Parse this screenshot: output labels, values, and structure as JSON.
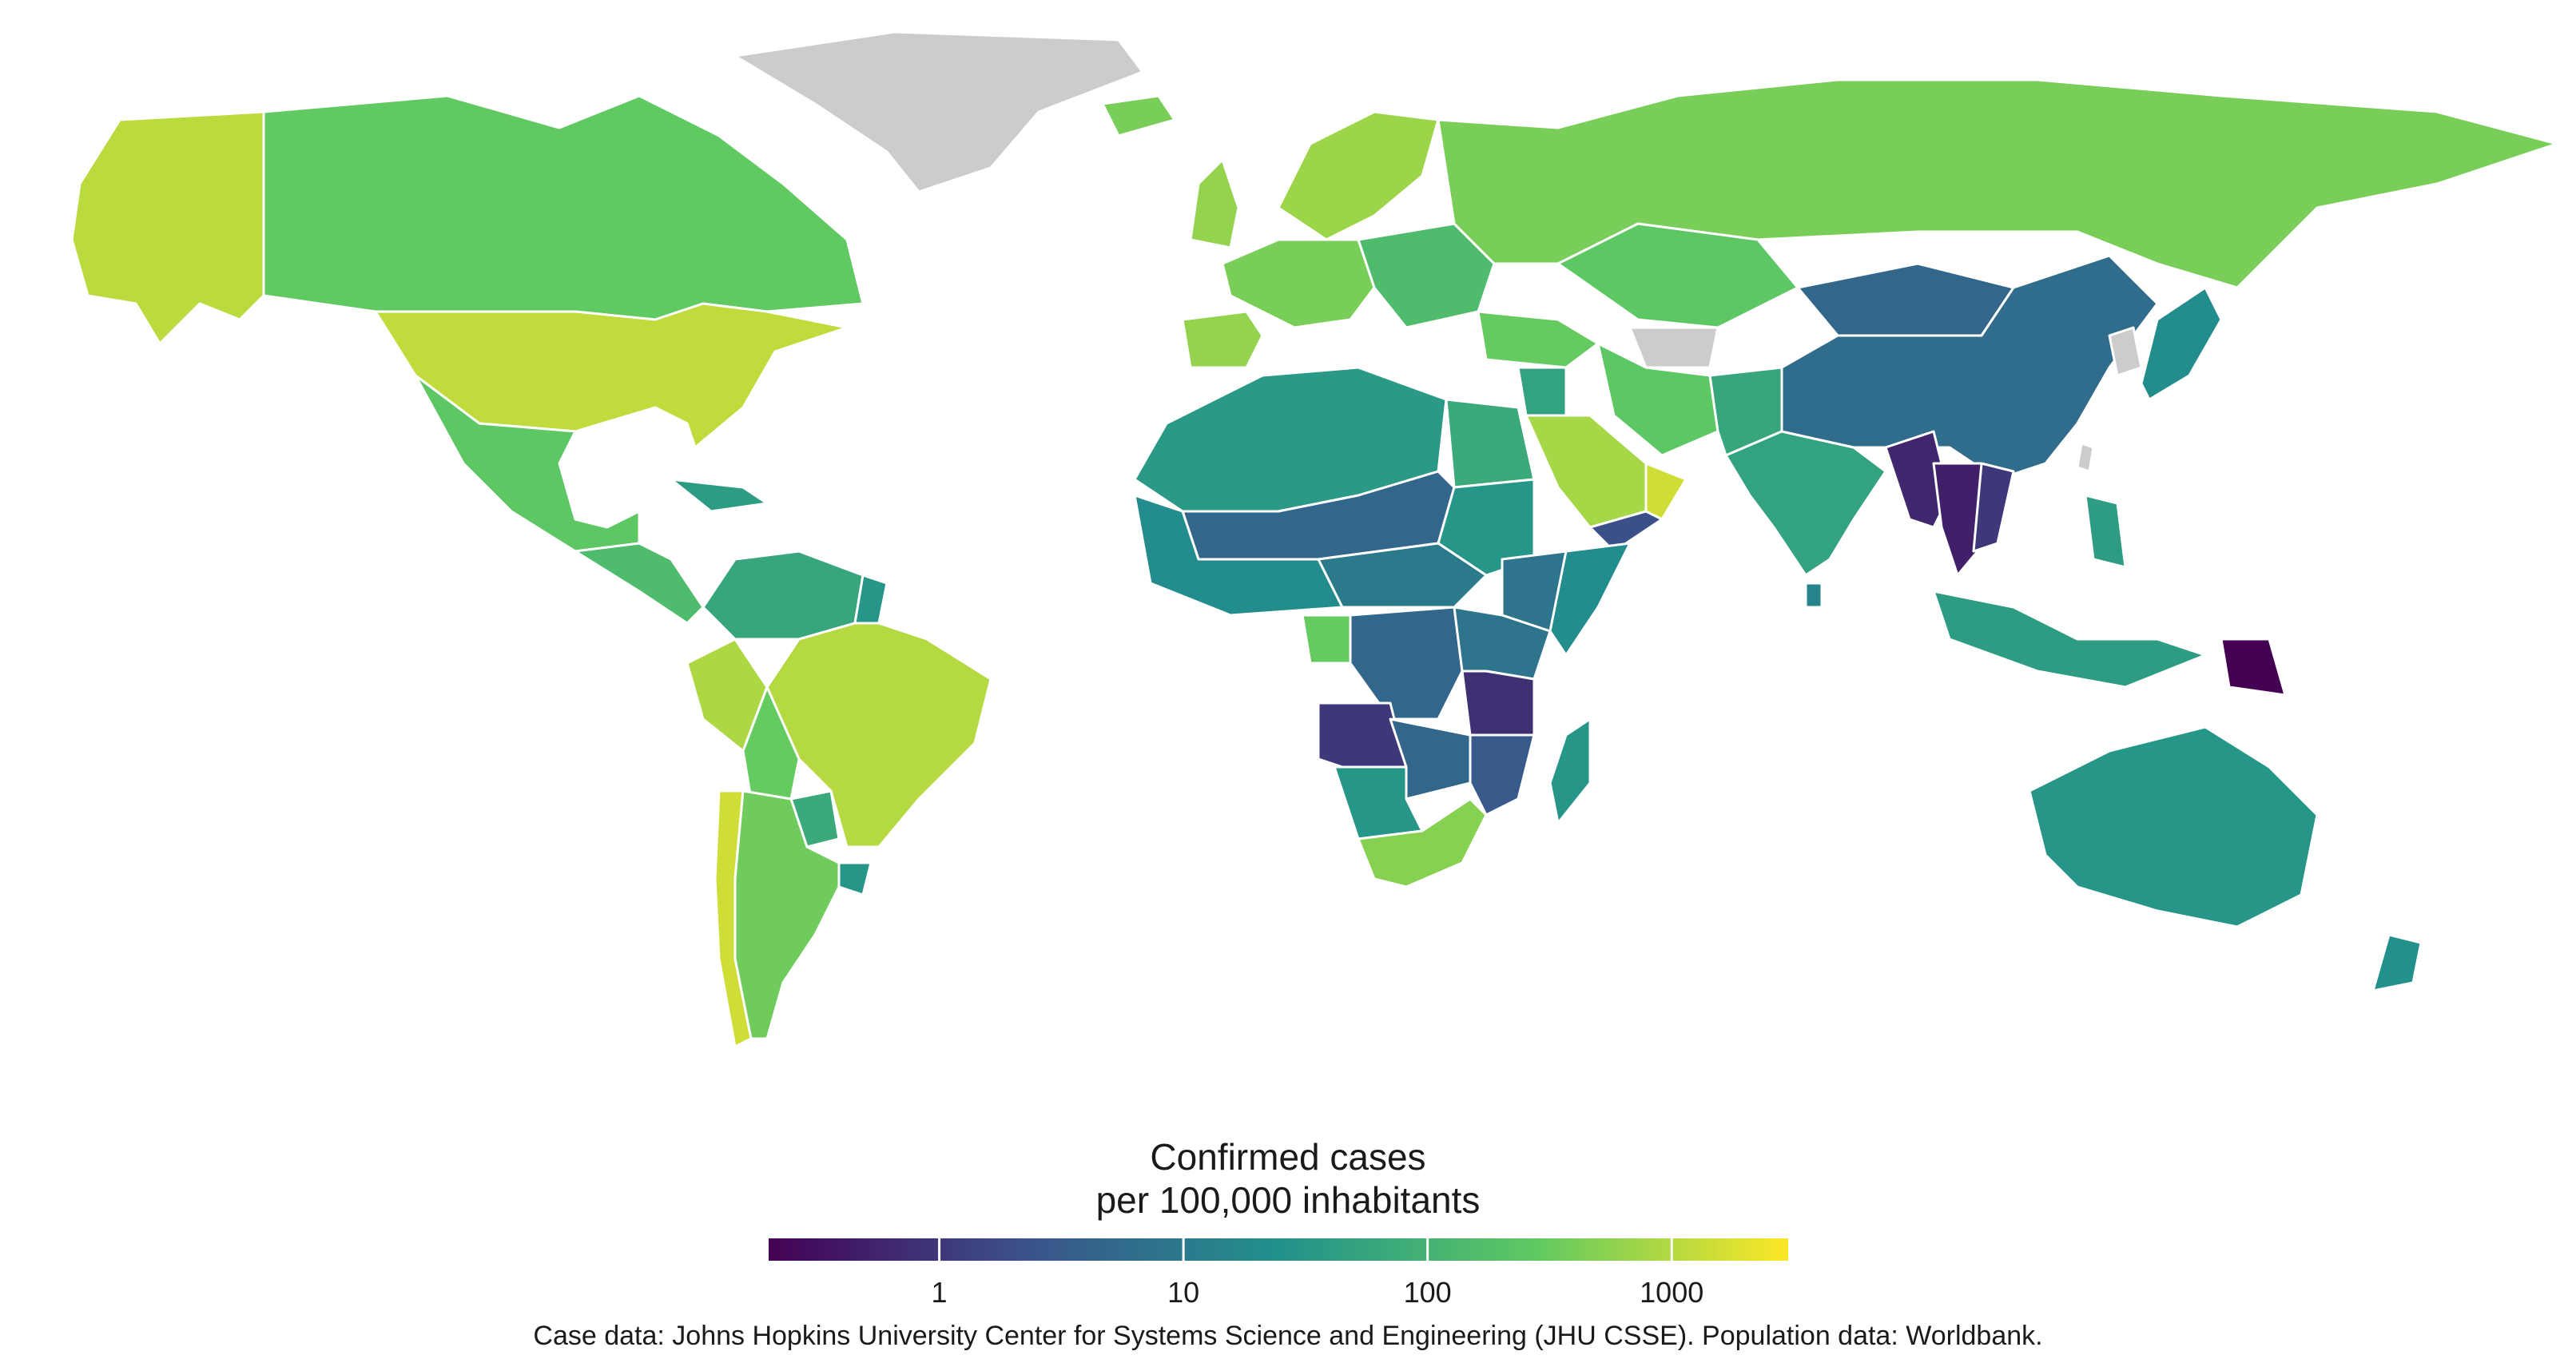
{
  "legend": {
    "title_line1": "Confirmed cases",
    "title_line2": "per 100,000 inhabitants",
    "scale": "log",
    "domain": [
      0.2,
      3000
    ],
    "ticks": [
      {
        "value": 1,
        "label": "1"
      },
      {
        "value": 10,
        "label": "10"
      },
      {
        "value": 100,
        "label": "100"
      },
      {
        "value": 1000,
        "label": "1000"
      }
    ],
    "palette": [
      "#440154",
      "#3b528b",
      "#21918c",
      "#5ec962",
      "#fde725"
    ],
    "no_data_color": "#cccccc"
  },
  "caption": "Case data: Johns Hopkins University Center for Systems Science and Engineering (JHU CSSE). Population data: Worldbank.",
  "regions": [
    {
      "name": "Alaska",
      "value": 1100
    },
    {
      "name": "Canada",
      "value": 280
    },
    {
      "name": "Greenland",
      "value": null
    },
    {
      "name": "United States",
      "value": 1200
    },
    {
      "name": "Mexico",
      "value": 250
    },
    {
      "name": "Central America",
      "value": 150
    },
    {
      "name": "Caribbean",
      "value": 40
    },
    {
      "name": "Colombia and Venezuela",
      "value": 60
    },
    {
      "name": "Guianas",
      "value": 30
    },
    {
      "name": "Peru",
      "value": 900
    },
    {
      "name": "Bolivia",
      "value": 300
    },
    {
      "name": "Brazil",
      "value": 1000
    },
    {
      "name": "Paraguay",
      "value": 70
    },
    {
      "name": "Uruguay",
      "value": 30
    },
    {
      "name": "Chile",
      "value": 1500
    },
    {
      "name": "Argentina",
      "value": 350
    },
    {
      "name": "Iceland",
      "value": 400
    },
    {
      "name": "United Kingdom",
      "value": 600
    },
    {
      "name": "Western Europe",
      "value": 400
    },
    {
      "name": "Iberia",
      "value": 600
    },
    {
      "name": "Scandinavia",
      "value": 700
    },
    {
      "name": "Eastern Europe",
      "value": 150
    },
    {
      "name": "Russia",
      "value": 400
    },
    {
      "name": "Kazakhstan",
      "value": 250
    },
    {
      "name": "Central Asia",
      "value": null
    },
    {
      "name": "Turkey and Caucasus",
      "value": 300
    },
    {
      "name": "Iran",
      "value": 250
    },
    {
      "name": "Arabian Peninsula",
      "value": 800
    },
    {
      "name": "Oman and UAE",
      "value": 1500
    },
    {
      "name": "Yemen",
      "value": 2
    },
    {
      "name": "Levant",
      "value": 50
    },
    {
      "name": "Afghanistan and Pakistan",
      "value": 60
    },
    {
      "name": "India",
      "value": 50
    },
    {
      "name": "Sri Lanka",
      "value": 15
    },
    {
      "name": "Mongolia",
      "value": 5
    },
    {
      "name": "China",
      "value": 6
    },
    {
      "name": "Korea",
      "value": null
    },
    {
      "name": "Japan",
      "value": 20
    },
    {
      "name": "Taiwan",
      "value": null
    },
    {
      "name": "Myanmar",
      "value": 0.6
    },
    {
      "name": "Thailand and Laos",
      "value": 0.5
    },
    {
      "name": "Vietnam",
      "value": 1
    },
    {
      "name": "Malaysia and Indonesia",
      "value": 40
    },
    {
      "name": "Philippines",
      "value": 40
    },
    {
      "name": "Papua New Guinea",
      "value": 0.2
    },
    {
      "name": "Australia",
      "value": 30
    },
    {
      "name": "New Zealand",
      "value": 25
    },
    {
      "name": "North Africa",
      "value": 35
    },
    {
      "name": "Egypt",
      "value": 70
    },
    {
      "name": "Sahel",
      "value": 5
    },
    {
      "name": "West Africa",
      "value": 20
    },
    {
      "name": "Central Africa",
      "value": 10
    },
    {
      "name": "Sudan",
      "value": 30
    },
    {
      "name": "Ethiopia",
      "value": 8
    },
    {
      "name": "Somalia",
      "value": 20
    },
    {
      "name": "Gabon",
      "value": 300
    },
    {
      "name": "DR Congo",
      "value": 5
    },
    {
      "name": "East Africa",
      "value": 8
    },
    {
      "name": "Tanzania",
      "value": 0.8
    },
    {
      "name": "Angola",
      "value": 1
    },
    {
      "name": "Zambia and Zimbabwe",
      "value": 5
    },
    {
      "name": "Mozambique",
      "value": 3
    },
    {
      "name": "Namibia and Botswana",
      "value": 30
    },
    {
      "name": "South Africa",
      "value": 500
    },
    {
      "name": "Madagascar",
      "value": 30
    }
  ]
}
